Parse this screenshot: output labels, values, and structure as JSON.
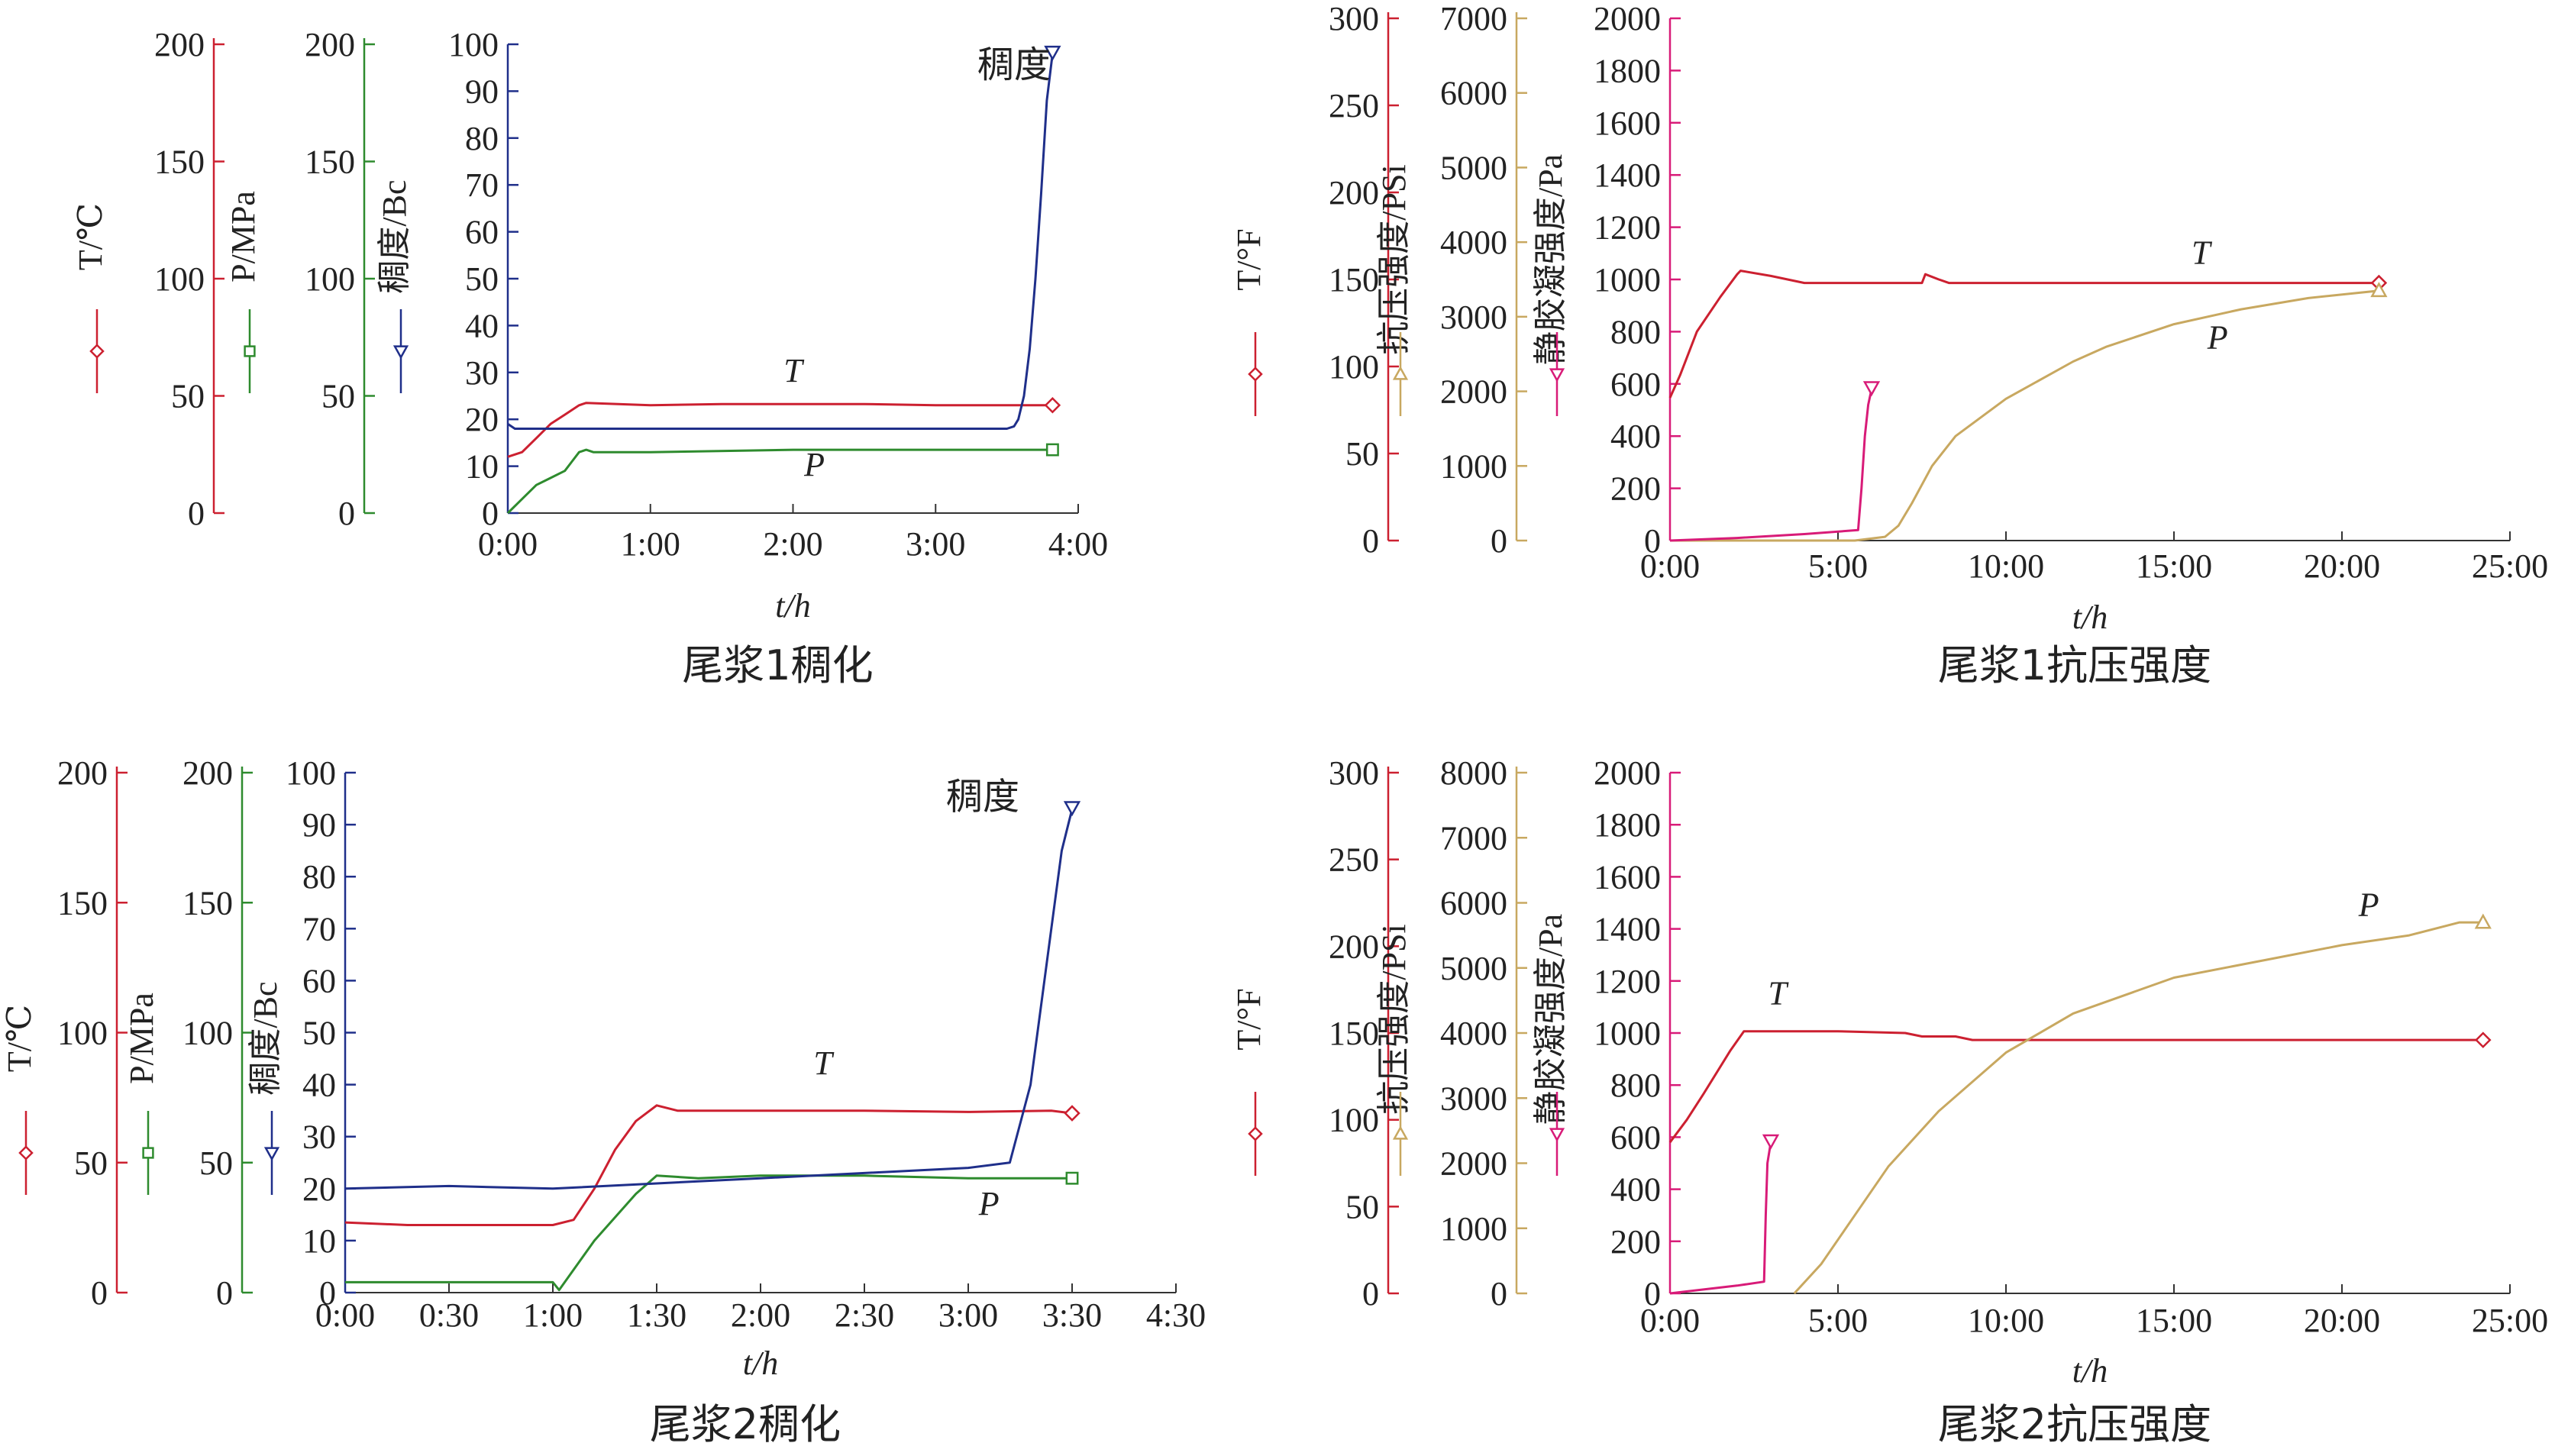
{
  "colors": {
    "T": "#cc2030",
    "P_thick": "#2e8b2e",
    "P_cs": "#c8a860",
    "Bc": "#1f2f8a",
    "SGS": "#d81b78",
    "axis": "#333333"
  },
  "chart_data": [
    {
      "type": "line",
      "title": "尾浆1稠化",
      "xlabel": "t/h",
      "xticks": [
        "0:00",
        "1:00",
        "2:00",
        "3:00",
        "4:00"
      ],
      "xlim": [
        0,
        4.0
      ],
      "axes": [
        {
          "key": "T",
          "label": "T/℃",
          "ticks": [
            "0",
            "50",
            "100",
            "150",
            "200"
          ],
          "range": [
            0,
            200
          ],
          "marker": "diamond"
        },
        {
          "key": "P",
          "label": "P/MPa",
          "ticks": [
            "0",
            "50",
            "100",
            "150",
            "200"
          ],
          "range": [
            0,
            200
          ],
          "marker": "square"
        },
        {
          "key": "Bc",
          "label": "稠度/Bc",
          "ticks": [
            "0",
            "10",
            "20",
            "30",
            "40",
            "50",
            "60",
            "70",
            "80",
            "90",
            "100"
          ],
          "range": [
            0,
            100
          ],
          "marker": "triangle"
        }
      ],
      "series": [
        {
          "name": "T",
          "axis": "T",
          "color": "#cc2030",
          "end_marker": "diamond",
          "x": [
            0,
            0.1,
            0.2,
            0.3,
            0.4,
            0.5,
            0.55,
            1.0,
            1.5,
            2.0,
            2.5,
            3.0,
            3.5,
            3.7,
            3.82
          ],
          "y": [
            24,
            26,
            32,
            38,
            42,
            46,
            47,
            46,
            46.5,
            46.5,
            46.5,
            46,
            46,
            46,
            46
          ]
        },
        {
          "name": "P",
          "axis": "P",
          "color": "#2e8b2e",
          "end_marker": "square",
          "x": [
            0,
            0.1,
            0.2,
            0.3,
            0.4,
            0.45,
            0.5,
            0.55,
            0.6,
            1.0,
            2.0,
            3.0,
            3.5,
            3.82
          ],
          "y": [
            0,
            6,
            12,
            15,
            18,
            22,
            26,
            27,
            26,
            26,
            27,
            27,
            27,
            27
          ]
        },
        {
          "name": "稠度",
          "axis": "Bc",
          "color": "#1f2f8a",
          "end_marker": "triangle",
          "x": [
            0,
            0.05,
            1.0,
            2.0,
            3.0,
            3.5,
            3.55,
            3.58,
            3.62,
            3.66,
            3.7,
            3.74,
            3.78,
            3.82
          ],
          "y": [
            19,
            18,
            18,
            18,
            18,
            18,
            18.5,
            20,
            25,
            35,
            50,
            68,
            88,
            98
          ]
        }
      ],
      "annotations": [
        {
          "text": "稠度",
          "x": 3.55,
          "y": 93,
          "axis": "Bc"
        },
        {
          "text": "T",
          "x": 2.0,
          "y": 28,
          "axis": "Bc"
        },
        {
          "text": "P",
          "x": 2.15,
          "y": 8,
          "axis": "Bc"
        }
      ]
    },
    {
      "type": "line",
      "title": "尾浆1抗压强度",
      "xlabel": "t/h",
      "xticks": [
        "0:00",
        "5:00",
        "10:00",
        "15:00",
        "20:00",
        "25:00"
      ],
      "xlim": [
        0,
        25
      ],
      "axes": [
        {
          "key": "T",
          "label": "T/°F",
          "ticks": [
            "0",
            "50",
            "100",
            "150",
            "200",
            "250",
            "300"
          ],
          "range": [
            0,
            300
          ],
          "marker": "diamond"
        },
        {
          "key": "CS",
          "label": "抗压强度/PSi",
          "ticks": [
            "0",
            "1000",
            "2000",
            "3000",
            "4000",
            "5000",
            "6000",
            "7000"
          ],
          "range": [
            0,
            7000
          ],
          "marker": "triangle-up"
        },
        {
          "key": "SGS",
          "label": "静胶凝强度/Pa",
          "ticks": [
            "0",
            "200",
            "400",
            "600",
            "800",
            "1000",
            "1200",
            "1400",
            "1600",
            "1800",
            "2000"
          ],
          "range": [
            0,
            2000
          ],
          "marker": "triangle"
        }
      ],
      "series": [
        {
          "name": "T",
          "axis": "T",
          "color": "#cc2030",
          "end_marker": "diamond",
          "x": [
            0,
            0.3,
            0.8,
            1.5,
            2.0,
            2.1,
            3.0,
            4.0,
            6.0,
            7.5,
            7.6,
            8.0,
            8.3,
            10.0,
            15.0,
            21.1
          ],
          "y": [
            82,
            95,
            120,
            140,
            153,
            155,
            152,
            148,
            148,
            148,
            153,
            150,
            148,
            148,
            148,
            148
          ]
        },
        {
          "name": "P",
          "axis": "CS",
          "color": "#c8a860",
          "end_marker": "triangle-up",
          "x": [
            0,
            5.5,
            6.4,
            6.8,
            7.2,
            7.8,
            8.5,
            10.0,
            12.0,
            13.0,
            15.0,
            17.0,
            19.0,
            21.1
          ],
          "y": [
            0,
            0,
            50,
            200,
            500,
            1000,
            1400,
            1900,
            2400,
            2600,
            2900,
            3100,
            3250,
            3350
          ]
        },
        {
          "name": "静胶凝强度",
          "axis": "SGS",
          "color": "#d81b78",
          "end_marker": "triangle",
          "x": [
            0,
            2.0,
            4.0,
            5.6,
            5.7,
            5.8,
            5.9,
            6.0
          ],
          "y": [
            0,
            10,
            25,
            40,
            200,
            400,
            520,
            580
          ]
        }
      ],
      "annotations": [
        {
          "text": "T",
          "x": 15.8,
          "y": 1060,
          "axis": "SGS"
        },
        {
          "text": "P",
          "x": 16.3,
          "y": 735,
          "axis": "SGS"
        }
      ]
    },
    {
      "type": "line",
      "title": "尾浆2稠化",
      "xlabel": "t/h",
      "xticks": [
        "0:00",
        "0:30",
        "1:00",
        "1:30",
        "2:00",
        "2:30",
        "3:00",
        "3:30",
        "4:30"
      ],
      "xlim": [
        0,
        4.0
      ],
      "axes": [
        {
          "key": "T",
          "label": "T/℃",
          "ticks": [
            "0",
            "50",
            "100",
            "150",
            "200"
          ],
          "range": [
            0,
            200
          ],
          "marker": "diamond"
        },
        {
          "key": "P",
          "label": "P/MPa",
          "ticks": [
            "0",
            "50",
            "100",
            "150",
            "200"
          ],
          "range": [
            0,
            200
          ],
          "marker": "square"
        },
        {
          "key": "Bc",
          "label": "稠度/Bc",
          "ticks": [
            "0",
            "10",
            "20",
            "30",
            "40",
            "50",
            "60",
            "70",
            "80",
            "90",
            "100"
          ],
          "range": [
            0,
            100
          ],
          "marker": "triangle"
        }
      ],
      "series": [
        {
          "name": "T",
          "axis": "T",
          "color": "#cc2030",
          "end_marker": "diamond",
          "x": [
            0,
            0.3,
            1.0,
            1.1,
            1.2,
            1.3,
            1.4,
            1.5,
            1.6,
            2.0,
            2.5,
            3.0,
            3.4,
            3.5
          ],
          "y": [
            27,
            26,
            26,
            28,
            40,
            55,
            66,
            72,
            70,
            70,
            70,
            69.5,
            70,
            69
          ]
        },
        {
          "name": "P",
          "axis": "P",
          "color": "#2e8b2e",
          "end_marker": "square",
          "x": [
            0,
            0.5,
            1.0,
            1.03,
            1.2,
            1.4,
            1.5,
            1.7,
            2.0,
            2.5,
            3.0,
            3.5
          ],
          "y": [
            4,
            4,
            4,
            1,
            20,
            38,
            45,
            44,
            45,
            45,
            44,
            44
          ]
        },
        {
          "name": "稠度",
          "axis": "Bc",
          "color": "#1f2f8a",
          "end_marker": "triangle",
          "x": [
            0,
            0.5,
            1.0,
            1.5,
            2.0,
            2.5,
            3.0,
            3.2,
            3.3,
            3.35,
            3.4,
            3.45,
            3.5
          ],
          "y": [
            20,
            20.5,
            20,
            21,
            22,
            23,
            24,
            25,
            40,
            55,
            70,
            85,
            93
          ]
        }
      ],
      "annotations": [
        {
          "text": "稠度",
          "x": 3.07,
          "y": 93,
          "axis": "Bc"
        },
        {
          "text": "T",
          "x": 2.3,
          "y": 42,
          "axis": "Bc"
        },
        {
          "text": "P",
          "x": 3.1,
          "y": 15,
          "axis": "Bc"
        }
      ]
    },
    {
      "type": "line",
      "title": "尾浆2抗压强度",
      "xlabel": "t/h",
      "xticks": [
        "0:00",
        "5:00",
        "10:00",
        "15:00",
        "20:00",
        "25:00"
      ],
      "xlim": [
        0,
        25
      ],
      "axes": [
        {
          "key": "T",
          "label": "T/°F",
          "ticks": [
            "0",
            "50",
            "100",
            "150",
            "200",
            "250",
            "300"
          ],
          "range": [
            0,
            300
          ],
          "marker": "diamond"
        },
        {
          "key": "CS",
          "label": "抗压强度/PSi",
          "ticks": [
            "0",
            "1000",
            "2000",
            "3000",
            "4000",
            "5000",
            "6000",
            "7000",
            "8000"
          ],
          "range": [
            0,
            8000
          ],
          "marker": "triangle-up"
        },
        {
          "key": "SGS",
          "label": "静胶凝强度/Pa",
          "ticks": [
            "0",
            "200",
            "400",
            "600",
            "800",
            "1000",
            "1200",
            "1400",
            "1600",
            "1800",
            "2000"
          ],
          "range": [
            0,
            2000
          ],
          "marker": "triangle"
        }
      ],
      "series": [
        {
          "name": "T",
          "axis": "T",
          "color": "#cc2030",
          "end_marker": "diamond",
          "x": [
            0,
            0.5,
            1.0,
            1.8,
            2.2,
            3.0,
            5.0,
            7.0,
            7.5,
            8.5,
            9.0,
            10.0,
            12.0,
            15.0,
            20.0,
            24.2
          ],
          "y": [
            87,
            100,
            115,
            140,
            151,
            151,
            151,
            150,
            148,
            148,
            146,
            146,
            146,
            146,
            146,
            146
          ]
        },
        {
          "name": "P",
          "axis": "CS",
          "color": "#c8a860",
          "end_marker": "triangle-up",
          "x": [
            3.7,
            4.5,
            5.5,
            6.5,
            8.0,
            10.0,
            12.0,
            15.0,
            18.0,
            20.0,
            22.0,
            23.5,
            24.2
          ],
          "y": [
            0,
            450,
            1200,
            1950,
            2800,
            3700,
            4300,
            4850,
            5150,
            5350,
            5500,
            5700,
            5700
          ]
        },
        {
          "name": "静胶凝强度",
          "axis": "SGS",
          "color": "#d81b78",
          "end_marker": "triangle",
          "x": [
            0,
            1.0,
            2.0,
            2.8,
            2.85,
            2.9,
            3.0
          ],
          "y": [
            0,
            15,
            30,
            45,
            300,
            500,
            580
          ]
        }
      ],
      "annotations": [
        {
          "text": "T",
          "x": 3.2,
          "y": 1110,
          "axis": "SGS"
        },
        {
          "text": "P",
          "x": 20.8,
          "y": 1450,
          "axis": "SGS"
        }
      ]
    }
  ]
}
